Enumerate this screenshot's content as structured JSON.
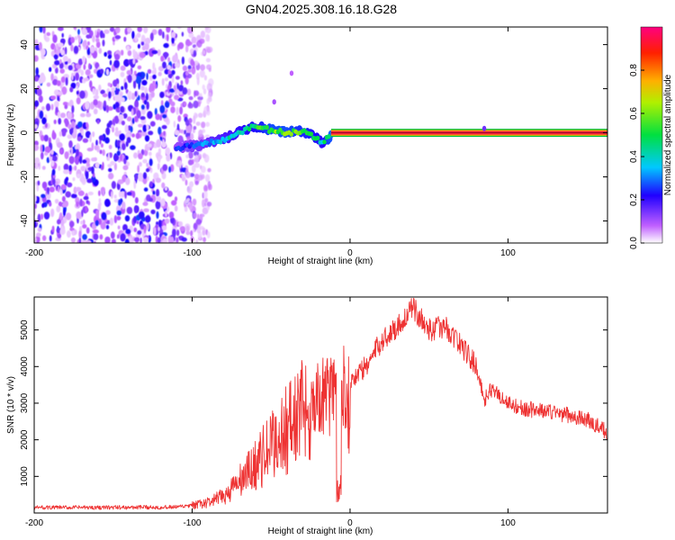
{
  "figure_title": "GN04.2025.308.16.18.G28",
  "chart_data": [
    {
      "type": "heatmap",
      "xlabel": "Height of straight line (km)",
      "ylabel": "Frequency (Hz)",
      "xlim": [
        -200,
        163
      ],
      "ylim": [
        -50,
        48
      ],
      "x_ticks": [
        -200,
        -100,
        0,
        100
      ],
      "y_ticks": [
        -40,
        -20,
        0,
        20,
        40
      ],
      "x_tick_labels": [
        "-200",
        "-100",
        "0",
        "100"
      ],
      "y_tick_labels": [
        "-40",
        "-20",
        "0",
        "20",
        "40"
      ],
      "colorbar": {
        "label": "Normalized spectral amplitude",
        "range": [
          0,
          1
        ],
        "ticks": [
          0.0,
          0.2,
          0.4,
          0.6,
          0.8
        ],
        "tick_labels": [
          "0.0",
          "0.2",
          "0.4",
          "0.6",
          "0.8"
        ]
      },
      "noise_region_x": [
        -200,
        -88
      ],
      "signal_trace": [
        {
          "x": -110,
          "y": -7,
          "a": 0.25
        },
        {
          "x": -100,
          "y": -6,
          "a": 0.3
        },
        {
          "x": -90,
          "y": -5,
          "a": 0.35
        },
        {
          "x": -80,
          "y": -3,
          "a": 0.4
        },
        {
          "x": -70,
          "y": 0,
          "a": 0.45
        },
        {
          "x": -60,
          "y": 3,
          "a": 0.5
        },
        {
          "x": -50,
          "y": 1,
          "a": 0.6
        },
        {
          "x": -40,
          "y": 0,
          "a": 0.6
        },
        {
          "x": -30,
          "y": 1,
          "a": 0.55
        },
        {
          "x": -20,
          "y": -3,
          "a": 0.5
        },
        {
          "x": -18,
          "y": -5,
          "a": 0.45
        },
        {
          "x": -10,
          "y": 0,
          "a": 0.7
        },
        {
          "x": 0,
          "y": 0,
          "a": 0.8
        },
        {
          "x": 40,
          "y": 0,
          "a": 0.85
        },
        {
          "x": 80,
          "y": 0,
          "a": 0.85
        },
        {
          "x": 120,
          "y": 0,
          "a": 0.85
        },
        {
          "x": 163,
          "y": 0,
          "a": 0.85
        }
      ],
      "isolated_points": [
        {
          "x": -48,
          "y": 14,
          "a": 0.1
        },
        {
          "x": -37,
          "y": 27,
          "a": 0.08
        },
        {
          "x": 85,
          "y": 2,
          "a": 0.15
        }
      ]
    },
    {
      "type": "line",
      "xlabel": "Height of straight line (km)",
      "ylabel": "SNR (10 * v/v)",
      "xlim": [
        -200,
        163
      ],
      "ylim": [
        0,
        5900
      ],
      "x_ticks": [
        -200,
        -100,
        0,
        100
      ],
      "y_ticks": [
        1000,
        2000,
        3000,
        4000,
        5000
      ],
      "x_tick_labels": [
        "-200",
        "-100",
        "0",
        "100"
      ],
      "y_tick_labels": [
        "1000",
        "2000",
        "3000",
        "4000",
        "5000"
      ],
      "series": [
        {
          "name": "SNR",
          "color": "#ee3333",
          "x": [
            -200,
            -150,
            -110,
            -100,
            -90,
            -80,
            -70,
            -60,
            -50,
            -40,
            -30,
            -20,
            -10,
            0,
            10,
            20,
            30,
            40,
            50,
            60,
            70,
            80,
            85,
            90,
            100,
            110,
            120,
            130,
            140,
            150,
            163
          ],
          "y": [
            150,
            150,
            160,
            200,
            280,
            450,
            850,
            1300,
            1800,
            2300,
            2800,
            3100,
            3300,
            3600,
            4000,
            4700,
            5100,
            5600,
            5000,
            5100,
            4600,
            4000,
            3100,
            3400,
            3000,
            2850,
            2800,
            2750,
            2650,
            2550,
            2200
          ]
        }
      ]
    }
  ]
}
